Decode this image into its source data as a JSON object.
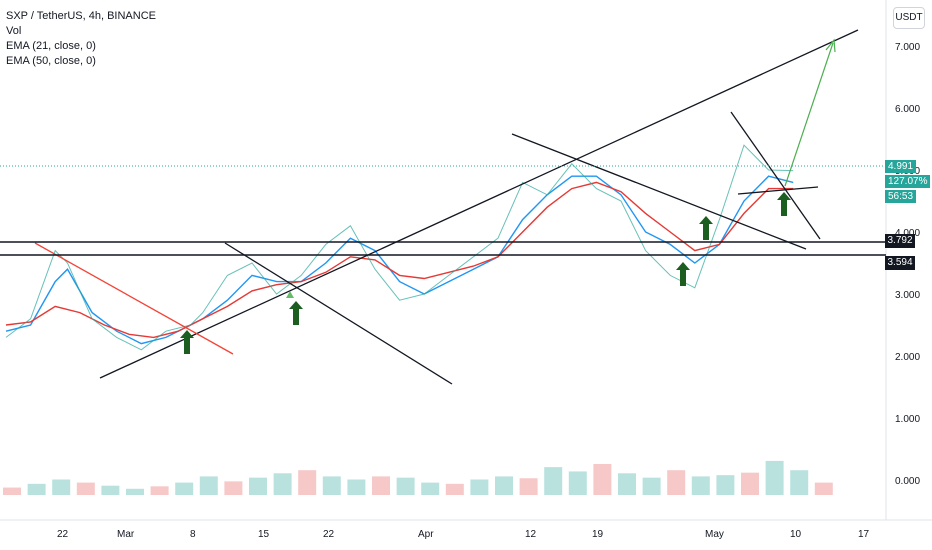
{
  "legend": {
    "symbol": "SXP / TetherUS, 4h, BINANCE",
    "vol": "Vol",
    "ema21": "EMA (21, close, 0)",
    "ema50": "EMA (50, close, 0)"
  },
  "currency": "USDT",
  "price_tags": {
    "last_price": "4.991",
    "percent": "127.07%",
    "countdown": "56:53",
    "level_high": "3.792",
    "level_low": "3.594"
  },
  "colors": {
    "up": "#26a69a",
    "down": "#ef5350",
    "ema21": "#2196f3",
    "ema50": "#e53935",
    "trendline": "#131722",
    "red_trendline": "#f44336",
    "projection": "#4caf50",
    "arrow": "#1b5e20"
  },
  "chart_data": {
    "type": "line",
    "title": "SXP / TetherUS, 4h, BINANCE",
    "y_ticks": [
      "7.000",
      "6.000",
      "5.000",
      "4.000",
      "3.000",
      "2.000",
      "1.000",
      "0.000"
    ],
    "x_ticks": [
      "22",
      "Mar",
      "8",
      "15",
      "22",
      "Apr",
      "12",
      "19",
      "May",
      "10",
      "17"
    ],
    "ylim": [
      -0.6,
      7.4
    ],
    "series": [
      {
        "name": "EMA (21, close, 0)",
        "x": [
          0,
          2,
          4,
          5,
          7,
          9,
          11,
          13,
          15,
          16,
          18,
          20,
          22,
          24,
          26,
          28,
          30,
          32,
          34,
          36,
          38,
          40,
          42,
          44,
          46,
          48,
          50,
          52,
          54,
          56,
          58,
          60,
          62,
          64
        ],
        "values": [
          2.4,
          2.5,
          3.2,
          3.4,
          2.7,
          2.4,
          2.2,
          2.3,
          2.5,
          2.6,
          2.9,
          3.3,
          3.2,
          3.2,
          3.5,
          3.9,
          3.7,
          3.2,
          3.0,
          3.2,
          3.4,
          3.6,
          4.2,
          4.6,
          4.9,
          4.9,
          4.6,
          4.0,
          3.8,
          3.5,
          3.8,
          4.5,
          4.9,
          4.8
        ]
      },
      {
        "name": "EMA (50, close, 0)",
        "x": [
          0,
          2,
          4,
          6,
          8,
          10,
          12,
          14,
          16,
          18,
          20,
          22,
          24,
          26,
          28,
          30,
          32,
          34,
          36,
          38,
          40,
          42,
          44,
          46,
          48,
          50,
          52,
          54,
          56,
          58,
          60,
          62,
          64
        ],
        "values": [
          2.5,
          2.55,
          2.8,
          2.7,
          2.5,
          2.35,
          2.3,
          2.4,
          2.6,
          2.8,
          3.05,
          3.15,
          3.2,
          3.35,
          3.6,
          3.55,
          3.3,
          3.25,
          3.35,
          3.45,
          3.6,
          4.0,
          4.4,
          4.7,
          4.8,
          4.65,
          4.3,
          4.0,
          3.7,
          3.8,
          4.3,
          4.7,
          4.7
        ]
      },
      {
        "name": "Close",
        "x": [
          0,
          2,
          4,
          5,
          7,
          9,
          11,
          13,
          15,
          16,
          18,
          20,
          22,
          24,
          26,
          28,
          30,
          32,
          34,
          36,
          38,
          40,
          42,
          44,
          46,
          48,
          50,
          52,
          54,
          56,
          58,
          60,
          62,
          64
        ],
        "values": [
          2.3,
          2.6,
          3.7,
          3.5,
          2.6,
          2.3,
          2.1,
          2.4,
          2.5,
          2.7,
          3.3,
          3.5,
          3.0,
          3.3,
          3.8,
          4.1,
          3.4,
          2.9,
          3.0,
          3.3,
          3.6,
          3.9,
          4.8,
          4.6,
          5.1,
          4.7,
          4.5,
          3.7,
          3.3,
          3.1,
          4.2,
          5.4,
          5.0,
          4.99
        ]
      }
    ],
    "volume": [
      0.12,
      0.18,
      0.25,
      0.2,
      0.15,
      0.1,
      0.14,
      0.2,
      0.3,
      0.22,
      0.28,
      0.35,
      0.4,
      0.3,
      0.25,
      0.3,
      0.28,
      0.2,
      0.18,
      0.25,
      0.3,
      0.27,
      0.45,
      0.38,
      0.5,
      0.35,
      0.28,
      0.4,
      0.3,
      0.32,
      0.36,
      0.55,
      0.4,
      0.2
    ],
    "horizontal_levels": [
      3.792,
      3.594
    ],
    "last_price": 4.991
  }
}
